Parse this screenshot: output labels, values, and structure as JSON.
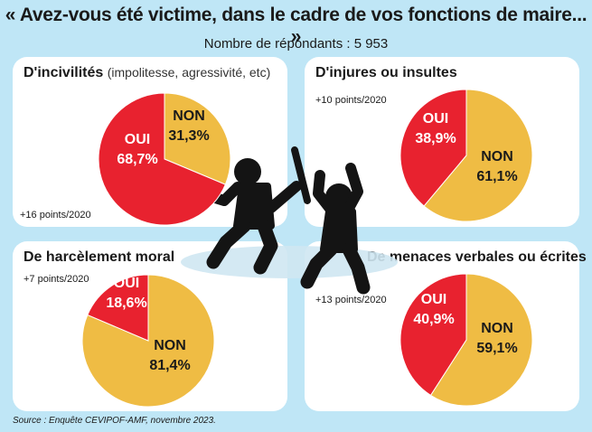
{
  "title": "« Avez-vous été victime, dans le cadre de vos fonctions de maire... »",
  "subtitle": "Nombre de répondants : 5 953",
  "source": "Source : Enquête CEVIPOF-AMF, novembre 2023.",
  "colors": {
    "oui": "#e8222f",
    "non": "#efbc44",
    "figure": "#141414"
  },
  "icons": [
    "person-with-stick-icon",
    "person-defending-icon"
  ],
  "chart_data": [
    {
      "type": "pie",
      "title": "D'incivilités",
      "title_extra": "(impolitesse, agressivité, etc)",
      "delta": "+16 points/2020",
      "slices": [
        {
          "label": "OUI",
          "value": 68.7,
          "text": "68,7%"
        },
        {
          "label": "NON",
          "value": 31.3,
          "text": "31,3%"
        }
      ]
    },
    {
      "type": "pie",
      "title": "D'injures ou insultes",
      "title_extra": "",
      "delta": "+10 points/2020",
      "slices": [
        {
          "label": "OUI",
          "value": 38.9,
          "text": "38,9%"
        },
        {
          "label": "NON",
          "value": 61.1,
          "text": "61,1%"
        }
      ]
    },
    {
      "type": "pie",
      "title": "De harcèlement moral",
      "title_extra": "",
      "delta": "+7 points/2020",
      "slices": [
        {
          "label": "OUI",
          "value": 18.6,
          "text": "18,6%"
        },
        {
          "label": "NON",
          "value": 81.4,
          "text": "81,4%"
        }
      ]
    },
    {
      "type": "pie",
      "title": "De menaces verbales ou écrites",
      "title_extra": "",
      "delta": "+13 points/2020",
      "slices": [
        {
          "label": "OUI",
          "value": 40.9,
          "text": "40,9%"
        },
        {
          "label": "NON",
          "value": 59.1,
          "text": "59,1%"
        }
      ]
    }
  ]
}
